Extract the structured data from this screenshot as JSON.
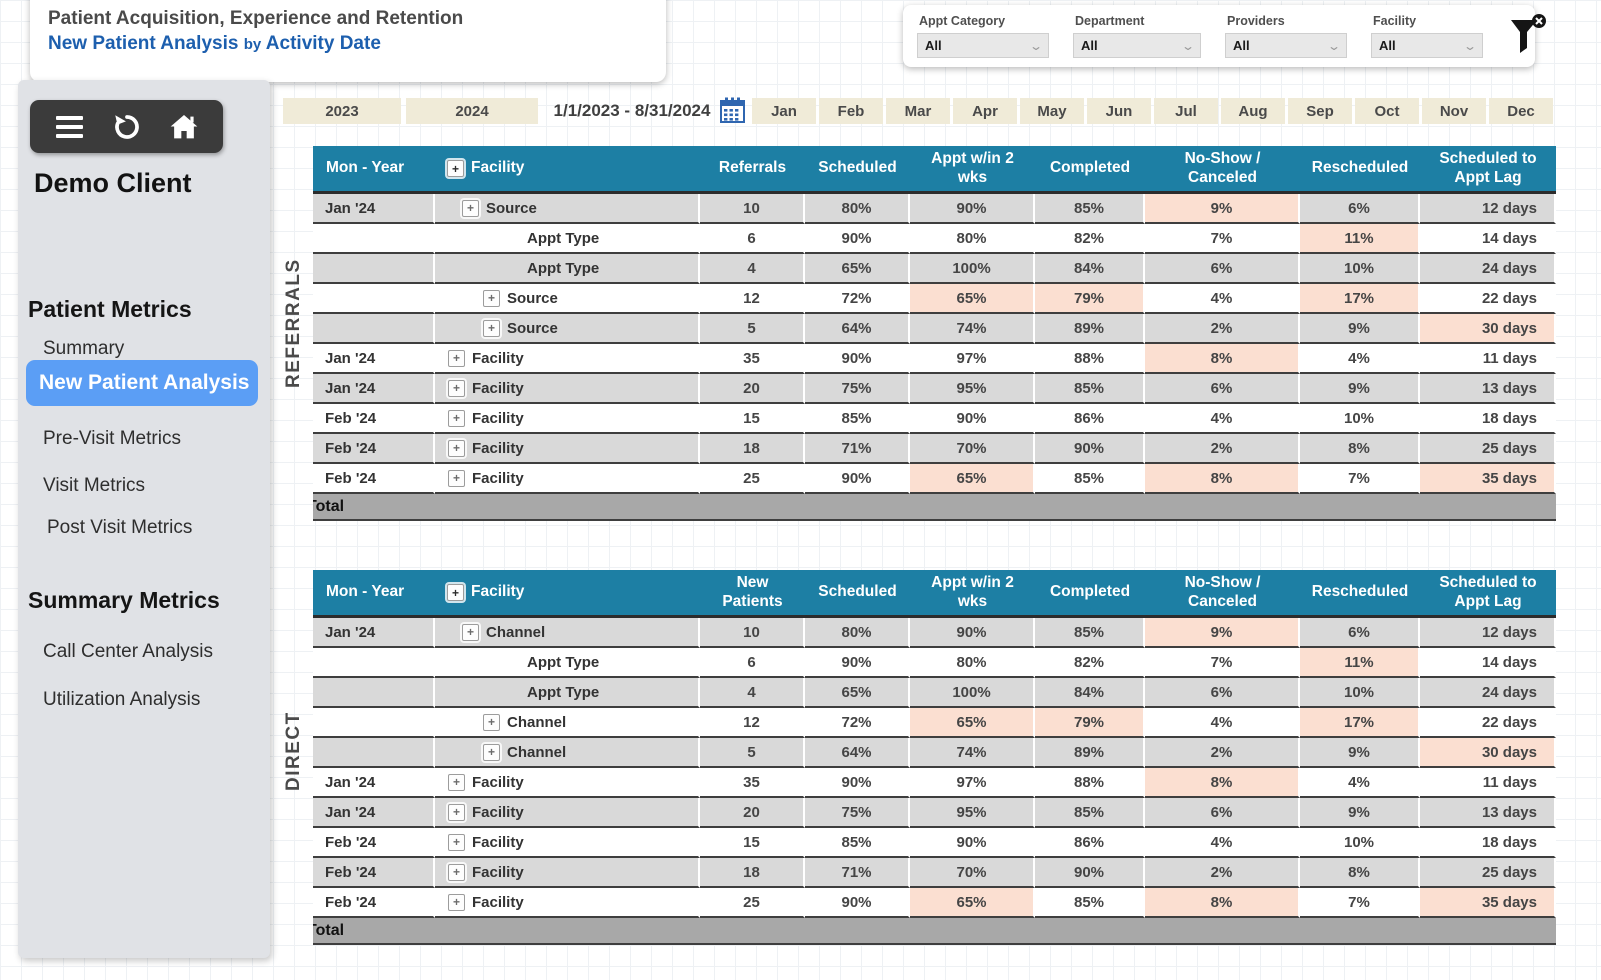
{
  "header": {
    "title": "Patient Acquisition, Experience and Retention",
    "subtitle_main": "New Patient Analysis",
    "subtitle_by": "by",
    "subtitle_rest": "Activity Date"
  },
  "filters": [
    {
      "label": "Appt Category",
      "value": "All"
    },
    {
      "label": "Department",
      "value": "All"
    },
    {
      "label": "Providers",
      "value": "All"
    },
    {
      "label": "Facility",
      "value": "All"
    }
  ],
  "sidebar": {
    "client": "Demo Client",
    "selected_item": "New Patient Analysis",
    "sections": [
      {
        "title": "Patient Metrics",
        "items": [
          "Summary",
          "New Patient Analysis",
          "Pre-Visit Metrics",
          "Visit Metrics",
          "Post Visit Metrics"
        ]
      },
      {
        "title": "Summary Metrics",
        "items": [
          "Call Center Analysis",
          "Utilization Analysis"
        ]
      }
    ]
  },
  "datebar": {
    "years": [
      "2023",
      "2024"
    ],
    "range_label": "1/1/2023 - 8/31/2024",
    "months": [
      "Jan",
      "Feb",
      "Mar",
      "Apr",
      "May",
      "Jun",
      "Jul",
      "Aug",
      "Sep",
      "Oct",
      "Nov",
      "Dec"
    ]
  },
  "icons": {
    "menu": "hamburger-icon",
    "refresh": "refresh-icon",
    "home": "home-icon",
    "calendar": "calendar-icon",
    "filter_clear": "filter-clear-icon",
    "expand": "plus-box-icon",
    "dropdown": "chevron-down-icon"
  },
  "colors": {
    "header_teal": "#1d7fa4",
    "row_gray": "#d9d9d9",
    "highlight_peach": "#fbdfd1",
    "total_gray": "#a8a8a8",
    "selected_nav_blue": "#5b9ef5",
    "accent_blue": "#1d5fae",
    "slicer_beige": "#f0ebd8"
  },
  "tables": [
    {
      "group_label": "REFERRALS",
      "columns": [
        "Mon - Year",
        "Facility",
        "Referrals",
        "Scheduled",
        "Appt w/in 2 wks",
        "Completed",
        "No-Show / Canceled",
        "Rescheduled",
        "Scheduled to Appt Lag"
      ],
      "total_label": "Total",
      "rows": [
        {
          "mon": "Jan '24",
          "entity": "Source",
          "icon": true,
          "ind": 1,
          "vals": [
            "10",
            "80%",
            "90%",
            "85%",
            "9%",
            "6%",
            "12 days"
          ],
          "hl": [
            4
          ]
        },
        {
          "mon": "",
          "entity": "Appt Type",
          "icon": false,
          "ind": 3,
          "vals": [
            "6",
            "90%",
            "80%",
            "82%",
            "7%",
            "11%",
            "14 days"
          ],
          "hl": [
            5
          ]
        },
        {
          "mon": "",
          "entity": "Appt Type",
          "icon": false,
          "ind": 3,
          "vals": [
            "4",
            "65%",
            "100%",
            "84%",
            "6%",
            "10%",
            "24 days"
          ],
          "hl": []
        },
        {
          "mon": "",
          "entity": "Source",
          "icon": true,
          "ind": 2,
          "vals": [
            "12",
            "72%",
            "65%",
            "79%",
            "4%",
            "17%",
            "22 days"
          ],
          "hl": [
            2,
            3,
            5
          ]
        },
        {
          "mon": "",
          "entity": "Source",
          "icon": true,
          "ind": 2,
          "vals": [
            "5",
            "64%",
            "74%",
            "89%",
            "2%",
            "9%",
            "30 days"
          ],
          "hl": [
            6
          ]
        },
        {
          "mon": "Jan '24",
          "entity": "Facility",
          "icon": true,
          "ind": 0,
          "vals": [
            "35",
            "90%",
            "97%",
            "88%",
            "8%",
            "4%",
            "11 days"
          ],
          "hl": [
            4
          ]
        },
        {
          "mon": "Jan '24",
          "entity": "Facility",
          "icon": true,
          "ind": 0,
          "vals": [
            "20",
            "75%",
            "95%",
            "85%",
            "6%",
            "9%",
            "13 days"
          ],
          "hl": []
        },
        {
          "mon": "Feb '24",
          "entity": "Facility",
          "icon": true,
          "ind": 0,
          "vals": [
            "15",
            "85%",
            "90%",
            "86%",
            "4%",
            "10%",
            "18 days"
          ],
          "hl": []
        },
        {
          "mon": "Feb '24",
          "entity": "Facility",
          "icon": true,
          "ind": 0,
          "vals": [
            "18",
            "71%",
            "70%",
            "90%",
            "2%",
            "8%",
            "25 days"
          ],
          "hl": []
        },
        {
          "mon": "Feb '24",
          "entity": "Facility",
          "icon": true,
          "ind": 0,
          "vals": [
            "25",
            "90%",
            "65%",
            "85%",
            "8%",
            "7%",
            "35 days"
          ],
          "hl": [
            2,
            4,
            6
          ]
        }
      ]
    },
    {
      "group_label": "DIRECT",
      "columns": [
        "Mon - Year",
        "Facility",
        "New Patients",
        "Scheduled",
        "Appt w/in 2 wks",
        "Completed",
        "No-Show / Canceled",
        "Rescheduled",
        "Scheduled to Appt Lag"
      ],
      "total_label": "Total",
      "rows": [
        {
          "mon": "Jan '24",
          "entity": "Channel",
          "icon": true,
          "ind": 1,
          "vals": [
            "10",
            "80%",
            "90%",
            "85%",
            "9%",
            "6%",
            "12 days"
          ],
          "hl": [
            4
          ]
        },
        {
          "mon": "",
          "entity": "Appt Type",
          "icon": false,
          "ind": 3,
          "vals": [
            "6",
            "90%",
            "80%",
            "82%",
            "7%",
            "11%",
            "14 days"
          ],
          "hl": [
            5
          ]
        },
        {
          "mon": "",
          "entity": "Appt Type",
          "icon": false,
          "ind": 3,
          "vals": [
            "4",
            "65%",
            "100%",
            "84%",
            "6%",
            "10%",
            "24 days"
          ],
          "hl": []
        },
        {
          "mon": "",
          "entity": "Channel",
          "icon": true,
          "ind": 2,
          "vals": [
            "12",
            "72%",
            "65%",
            "79%",
            "4%",
            "17%",
            "22 days"
          ],
          "hl": [
            2,
            3,
            5
          ]
        },
        {
          "mon": "",
          "entity": "Channel",
          "icon": true,
          "ind": 2,
          "vals": [
            "5",
            "64%",
            "74%",
            "89%",
            "2%",
            "9%",
            "30 days"
          ],
          "hl": [
            6
          ]
        },
        {
          "mon": "Jan '24",
          "entity": "Facility",
          "icon": true,
          "ind": 0,
          "vals": [
            "35",
            "90%",
            "97%",
            "88%",
            "8%",
            "4%",
            "11 days"
          ],
          "hl": [
            4
          ]
        },
        {
          "mon": "Jan '24",
          "entity": "Facility",
          "icon": true,
          "ind": 0,
          "vals": [
            "20",
            "75%",
            "95%",
            "85%",
            "6%",
            "9%",
            "13 days"
          ],
          "hl": []
        },
        {
          "mon": "Feb '24",
          "entity": "Facility",
          "icon": true,
          "ind": 0,
          "vals": [
            "15",
            "85%",
            "90%",
            "86%",
            "4%",
            "10%",
            "18 days"
          ],
          "hl": []
        },
        {
          "mon": "Feb '24",
          "entity": "Facility",
          "icon": true,
          "ind": 0,
          "vals": [
            "18",
            "71%",
            "70%",
            "90%",
            "2%",
            "8%",
            "25 days"
          ],
          "hl": []
        },
        {
          "mon": "Feb '24",
          "entity": "Facility",
          "icon": true,
          "ind": 0,
          "vals": [
            "25",
            "90%",
            "65%",
            "85%",
            "8%",
            "7%",
            "35 days"
          ],
          "hl": [
            2,
            4,
            6
          ]
        }
      ]
    }
  ]
}
